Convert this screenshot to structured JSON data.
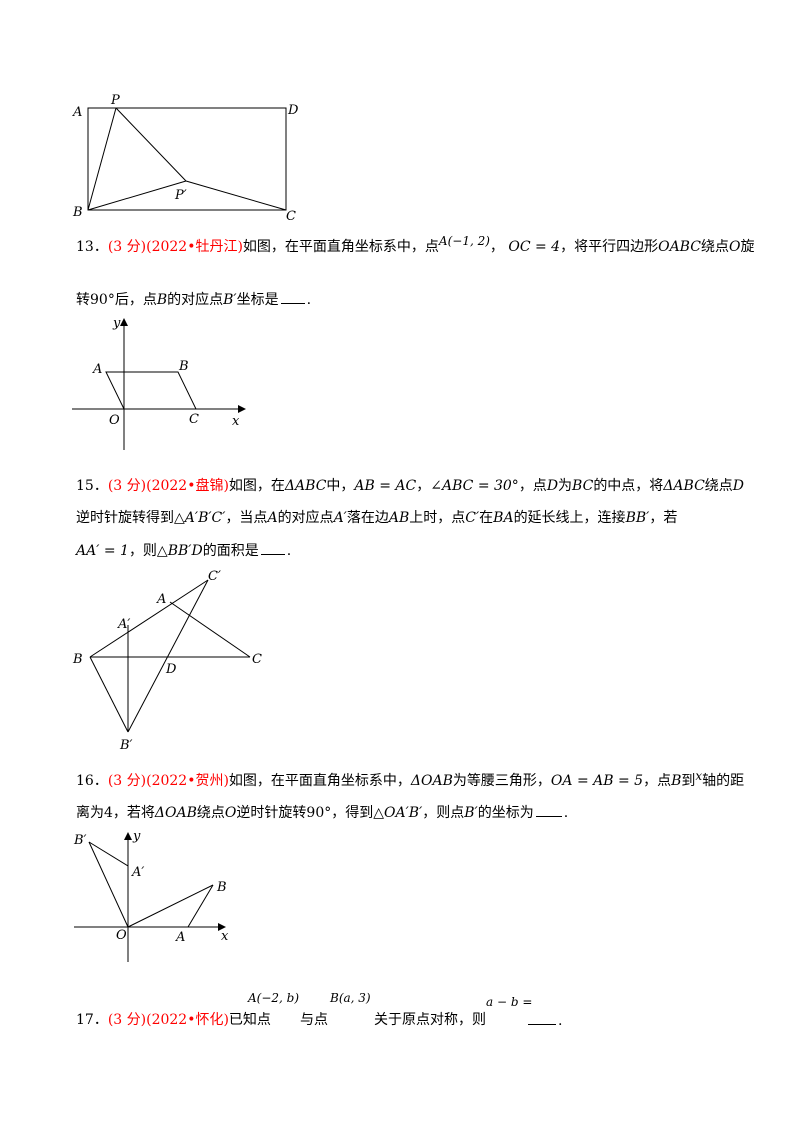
{
  "fig_rect": {
    "labels": [
      "A",
      "P",
      "D",
      "B",
      "P′",
      "C"
    ]
  },
  "q13": {
    "num": "13．",
    "score_src": "(3 分)(2022•牡丹江)",
    "t1": "如图，在平面直角坐标系中，点",
    "m_A": "A(−1, 2)",
    "t2": "，",
    "m_OC": "OC = 4",
    "t3": "，将平行四边形",
    "m_OABC": "OABC",
    "t4": "绕点",
    "m_O": "O",
    "t5": "旋",
    "l2_t1": "转",
    "m_90": "90°",
    "l2_t2": "后，点",
    "m_B": "B",
    "l2_t3": "的对应点",
    "m_B2": "B′",
    "l2_t4": "坐标是",
    "l2_end": "."
  },
  "fig13": {
    "labels": [
      "y",
      "A",
      "B",
      "O",
      "C",
      "x"
    ]
  },
  "q15": {
    "num": "15．",
    "score_src": "(3 分)(2022•盘锦)",
    "t1": "如图，在",
    "m_tri": "ΔABC",
    "t2": "中，",
    "m_eq1": "AB = AC",
    "t3": "，",
    "m_ang": "∠ABC = 30°",
    "t4": "，点",
    "m_D": "D",
    "t5": "为",
    "m_BC": "BC",
    "t6": "的中点，将",
    "m_tri2": "ΔABC",
    "t7": "绕点",
    "m_D2": "D",
    "l2_t1": "逆时针旋转得到△",
    "m_tri3": "A′B′C′",
    "l2_t2": "，当点",
    "m_A": "A",
    "l2_t3": "的对应点",
    "m_A2": "A′",
    "l2_t4": "落在边",
    "m_AB": "AB",
    "l2_t5": "上时，点",
    "m_C2": "C′",
    "l2_t6": "在",
    "m_BA": "BA",
    "l2_t7": "的延长线上，连接",
    "m_BB": "BB′",
    "l2_t8": "，若",
    "m_AA": "AA′ = 1",
    "l3_t1": "，则△",
    "m_BBD": "BB′D",
    "l3_t2": "的面积是",
    "l3_end": "."
  },
  "fig15": {
    "labels": [
      "C′",
      "A",
      "A′",
      "B",
      "D",
      "C",
      "B′"
    ]
  },
  "q16": {
    "num": "16．",
    "score_src": "(3 分)(2022•贺州)",
    "t1": "如图，在平面直角坐标系中，",
    "m_tri": "ΔOAB",
    "t2": "为等腰三角形，",
    "m_eq": "OA = AB = 5",
    "t3": "，点",
    "m_B": "B",
    "t4": "到",
    "m_x": "x",
    "t5": "轴的距",
    "l2_t1": "离为4，若将",
    "m_tri2": "ΔOAB",
    "l2_t2": "绕点",
    "m_O": "O",
    "l2_t3": "逆时针旋转",
    "m_90": "90°",
    "l2_t4": "，得到△",
    "m_tri3": "OA′B′",
    "l2_t5": "，则点",
    "m_B2": "B′",
    "l2_t6": "的坐标为",
    "l2_end": "."
  },
  "fig16": {
    "labels": [
      "B′",
      "y",
      "A′",
      "B",
      "O",
      "A",
      "x"
    ]
  },
  "q17": {
    "num": "17．",
    "score_src": "(3 分)(2022•怀化)",
    "t1": "已知点",
    "t2": "与点",
    "t3": "关于原点对称，则",
    "end": ".",
    "m_A": "A(−2, b)",
    "m_B": "B(a, 3)",
    "m_ab": "a − b ="
  }
}
